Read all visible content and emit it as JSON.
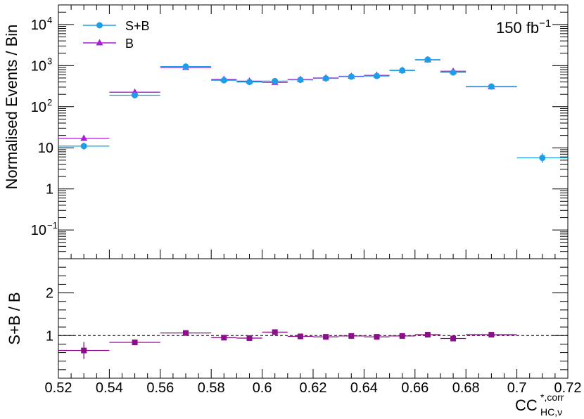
{
  "chart_data": [
    {
      "type": "scatter",
      "panel": "top",
      "ylabel": "Normalised Events / Bin",
      "yscale": "log",
      "ylim": [
        0.02,
        30000
      ],
      "xlim": [
        0.52,
        0.72
      ],
      "annotation": "150 fb",
      "annotation_sup": "−1",
      "legend": {
        "placement": "top-left",
        "entries": [
          "S+B",
          "B"
        ]
      },
      "y_tick_labels": [
        {
          "value": 0.1,
          "base": "10",
          "exp": "−1"
        },
        {
          "value": 1,
          "base": "1",
          "exp": ""
        },
        {
          "value": 10,
          "base": "10",
          "exp": ""
        },
        {
          "value": 100,
          "base": "10",
          "exp": "2"
        },
        {
          "value": 1000,
          "base": "10",
          "exp": "3"
        },
        {
          "value": 10000,
          "base": "10",
          "exp": "4"
        }
      ],
      "series": [
        {
          "name": "S+B",
          "color": "#1e9ee6",
          "marker": "circle",
          "points": [
            {
              "x": 0.53,
              "xlo": 0.52,
              "xhi": 0.54,
              "y": 11,
              "ylo": 9,
              "yhi": 13.5
            },
            {
              "x": 0.55,
              "xlo": 0.54,
              "xhi": 0.56,
              "y": 190
            },
            {
              "x": 0.57,
              "xlo": 0.56,
              "xhi": 0.58,
              "y": 950
            },
            {
              "x": 0.585,
              "xlo": 0.58,
              "xhi": 0.59,
              "y": 440
            },
            {
              "x": 0.595,
              "xlo": 0.59,
              "xhi": 0.6,
              "y": 400
            },
            {
              "x": 0.605,
              "xlo": 0.6,
              "xhi": 0.61,
              "y": 420
            },
            {
              "x": 0.615,
              "xlo": 0.61,
              "xhi": 0.62,
              "y": 450
            },
            {
              "x": 0.625,
              "xlo": 0.62,
              "xhi": 0.63,
              "y": 490
            },
            {
              "x": 0.635,
              "xlo": 0.63,
              "xhi": 0.64,
              "y": 540
            },
            {
              "x": 0.645,
              "xlo": 0.64,
              "xhi": 0.65,
              "y": 560
            },
            {
              "x": 0.655,
              "xlo": 0.65,
              "xhi": 0.66,
              "y": 760
            },
            {
              "x": 0.665,
              "xlo": 0.66,
              "xhi": 0.67,
              "y": 1400
            },
            {
              "x": 0.675,
              "xlo": 0.67,
              "xhi": 0.68,
              "y": 680
            },
            {
              "x": 0.69,
              "xlo": 0.68,
              "xhi": 0.7,
              "y": 310
            },
            {
              "x": 0.71,
              "xlo": 0.7,
              "xhi": 0.72,
              "y": 5.7,
              "ylo": 4.3,
              "yhi": 7.4
            }
          ]
        },
        {
          "name": "B",
          "color": "#a61fd8",
          "marker": "triangle",
          "points": [
            {
              "x": 0.53,
              "xlo": 0.52,
              "xhi": 0.54,
              "y": 17
            },
            {
              "x": 0.55,
              "xlo": 0.54,
              "xhi": 0.56,
              "y": 225
            },
            {
              "x": 0.57,
              "xlo": 0.56,
              "xhi": 0.58,
              "y": 900
            },
            {
              "x": 0.585,
              "xlo": 0.58,
              "xhi": 0.59,
              "y": 460
            },
            {
              "x": 0.595,
              "xlo": 0.59,
              "xhi": 0.6,
              "y": 420
            },
            {
              "x": 0.605,
              "xlo": 0.6,
              "xhi": 0.61,
              "y": 390
            },
            {
              "x": 0.615,
              "xlo": 0.61,
              "xhi": 0.62,
              "y": 460
            },
            {
              "x": 0.625,
              "xlo": 0.62,
              "xhi": 0.63,
              "y": 500
            },
            {
              "x": 0.635,
              "xlo": 0.63,
              "xhi": 0.64,
              "y": 550
            },
            {
              "x": 0.645,
              "xlo": 0.64,
              "xhi": 0.65,
              "y": 580
            },
            {
              "x": 0.655,
              "xlo": 0.65,
              "xhi": 0.66,
              "y": 770
            },
            {
              "x": 0.665,
              "xlo": 0.66,
              "xhi": 0.67,
              "y": 1380
            },
            {
              "x": 0.675,
              "xlo": 0.67,
              "xhi": 0.68,
              "y": 730
            },
            {
              "x": 0.69,
              "xlo": 0.68,
              "xhi": 0.7,
              "y": 305
            }
          ]
        }
      ]
    },
    {
      "type": "scatter",
      "panel": "bottom",
      "ylabel": "S+B / B",
      "ylim": [
        0,
        2.8
      ],
      "xlim": [
        0.52,
        0.72
      ],
      "xlabel": "CC",
      "xlabel_sup": "*,corr",
      "xlabel_sub": "HC,ν",
      "reference_line": 1,
      "y_ticks": [
        1,
        2
      ],
      "x_ticks": [
        "0.52",
        "0.54",
        "0.56",
        "0.58",
        "0.6",
        "0.62",
        "0.64",
        "0.66",
        "0.68",
        "0.7",
        "0.72"
      ],
      "series": [
        {
          "name": "S+B / B",
          "color": "#8b0f8b",
          "marker": "square",
          "points": [
            {
              "x": 0.53,
              "xlo": 0.52,
              "xhi": 0.54,
              "y": 0.65,
              "ylo": 0.45,
              "yhi": 0.85
            },
            {
              "x": 0.55,
              "xlo": 0.54,
              "xhi": 0.56,
              "y": 0.84
            },
            {
              "x": 0.57,
              "xlo": 0.56,
              "xhi": 0.58,
              "y": 1.06
            },
            {
              "x": 0.585,
              "xlo": 0.58,
              "xhi": 0.59,
              "y": 0.95
            },
            {
              "x": 0.595,
              "xlo": 0.59,
              "xhi": 0.6,
              "y": 0.94
            },
            {
              "x": 0.605,
              "xlo": 0.6,
              "xhi": 0.61,
              "y": 1.08
            },
            {
              "x": 0.615,
              "xlo": 0.61,
              "xhi": 0.62,
              "y": 0.98
            },
            {
              "x": 0.625,
              "xlo": 0.62,
              "xhi": 0.63,
              "y": 0.97
            },
            {
              "x": 0.635,
              "xlo": 0.63,
              "xhi": 0.64,
              "y": 0.99
            },
            {
              "x": 0.645,
              "xlo": 0.64,
              "xhi": 0.65,
              "y": 0.97
            },
            {
              "x": 0.655,
              "xlo": 0.65,
              "xhi": 0.66,
              "y": 0.99
            },
            {
              "x": 0.665,
              "xlo": 0.66,
              "xhi": 0.67,
              "y": 1.02
            },
            {
              "x": 0.675,
              "xlo": 0.67,
              "xhi": 0.68,
              "y": 0.93
            },
            {
              "x": 0.69,
              "xlo": 0.68,
              "xhi": 0.7,
              "y": 1.02
            }
          ]
        }
      ]
    }
  ]
}
